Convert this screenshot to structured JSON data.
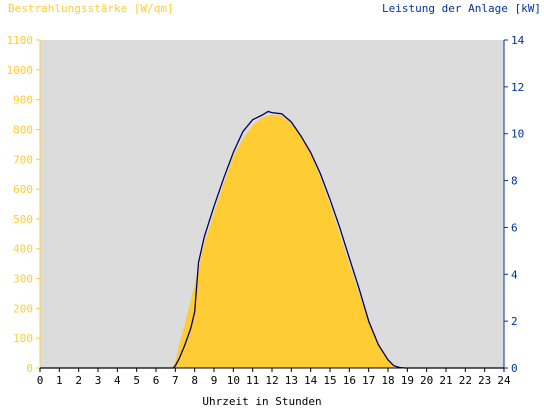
{
  "chart_data": {
    "type": "area",
    "left_axis_title": "Bestrahlungsstärke [W/qm]",
    "right_axis_title": "Leistung der Anlage [kW]",
    "xlabel": "Uhrzeit in Stunden",
    "x_ticks": [
      "0",
      "1",
      "2",
      "3",
      "4",
      "5",
      "6",
      "7",
      "8",
      "9",
      "10",
      "11",
      "12",
      "13",
      "14",
      "15",
      "16",
      "17",
      "18",
      "19",
      "20",
      "21",
      "22",
      "23",
      "24"
    ],
    "xlim": [
      0,
      24
    ],
    "ylim_left": [
      0,
      1100
    ],
    "ylim_right": [
      0,
      14
    ],
    "left_ticks": [
      "0",
      "100",
      "200",
      "300",
      "400",
      "500",
      "600",
      "700",
      "800",
      "900",
      "1000",
      "1100"
    ],
    "right_ticks": [
      "0",
      "2",
      "4",
      "6",
      "8",
      "10",
      "12",
      "14"
    ],
    "colors": {
      "plot_background": "#dcdcdc",
      "irradiance_fill": "#ffcc33",
      "power_line": "#000066",
      "left_axis": "#ffcc33",
      "right_axis": "#003399"
    },
    "series": [
      {
        "axis": "left",
        "style": "area",
        "x": [
          0,
          6.8,
          7.0,
          7.2,
          7.5,
          8.0,
          8.5,
          9.0,
          9.5,
          10.0,
          10.5,
          11.0,
          11.5,
          12.0,
          12.5,
          13.0,
          13.5,
          14.0,
          14.5,
          15.0,
          15.5,
          16.0,
          16.5,
          17.0,
          17.5,
          18.0,
          18.3,
          18.6,
          18.9,
          24
        ],
        "y": [
          0,
          0,
          20,
          80,
          150,
          280,
          420,
          520,
          620,
          710,
          770,
          815,
          840,
          850,
          845,
          820,
          780,
          720,
          640,
          550,
          450,
          350,
          250,
          160,
          85,
          30,
          10,
          3,
          0,
          0
        ]
      },
      {
        "axis": "right",
        "style": "line",
        "x": [
          0,
          6.9,
          7.0,
          7.2,
          7.5,
          7.8,
          8.0,
          8.2,
          8.5,
          9.0,
          9.5,
          10.0,
          10.5,
          11.0,
          11.5,
          11.8,
          12.0,
          12.5,
          13.0,
          13.5,
          14.0,
          14.5,
          15.0,
          15.5,
          16.0,
          16.5,
          17.0,
          17.5,
          18.0,
          18.3,
          18.6,
          18.9,
          24
        ],
        "y": [
          0,
          0,
          0.1,
          0.4,
          1.0,
          1.7,
          2.4,
          4.5,
          5.6,
          6.9,
          8.1,
          9.2,
          10.1,
          10.6,
          10.8,
          10.95,
          10.9,
          10.85,
          10.5,
          9.9,
          9.2,
          8.3,
          7.2,
          6.0,
          4.7,
          3.4,
          2.0,
          1.0,
          0.35,
          0.1,
          0.02,
          0,
          0
        ]
      }
    ]
  }
}
